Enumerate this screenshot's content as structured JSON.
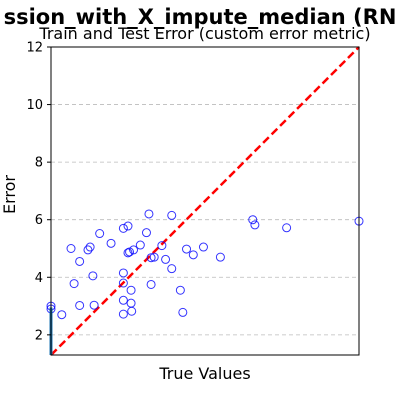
{
  "chart_data": {
    "type": "scatter",
    "title": "ssion_with_X_impute_median (RN",
    "subtitle": "Train and Test Error (custom error metric)",
    "xlabel": "True Values",
    "ylabel": "Error",
    "xlim": [
      0,
      1
    ],
    "ylim": [
      1.3,
      12
    ],
    "yticks": [
      2,
      4,
      6,
      8,
      10,
      12
    ],
    "yticks_labels": [
      "2",
      "4",
      "6",
      "8",
      "10",
      "12"
    ],
    "xticks_labels": [],
    "grid": "y-dashed",
    "marker_color": "#0000ff",
    "reference_line_color": "#ff0000",
    "accent_color": "#1f77b4",
    "reference_line": {
      "style": "dashed",
      "from": [
        0,
        1.3
      ],
      "to": [
        1,
        12
      ]
    },
    "series": [
      {
        "values": [
          [
            0.0,
            3.0
          ],
          [
            0.0,
            2.9
          ],
          [
            0.035,
            2.7
          ],
          [
            0.065,
            5.0
          ],
          [
            0.075,
            3.78
          ],
          [
            0.093,
            3.02
          ],
          [
            0.093,
            4.55
          ],
          [
            0.12,
            4.95
          ],
          [
            0.127,
            5.05
          ],
          [
            0.136,
            4.05
          ],
          [
            0.14,
            3.03
          ],
          [
            0.158,
            5.52
          ],
          [
            0.195,
            5.18
          ],
          [
            0.235,
            5.7
          ],
          [
            0.235,
            4.15
          ],
          [
            0.235,
            3.8
          ],
          [
            0.235,
            3.2
          ],
          [
            0.235,
            2.72
          ],
          [
            0.25,
            5.78
          ],
          [
            0.25,
            4.85
          ],
          [
            0.255,
            4.88
          ],
          [
            0.26,
            3.55
          ],
          [
            0.26,
            3.1
          ],
          [
            0.262,
            2.82
          ],
          [
            0.268,
            4.95
          ],
          [
            0.29,
            5.12
          ],
          [
            0.31,
            5.55
          ],
          [
            0.318,
            6.2
          ],
          [
            0.325,
            3.75
          ],
          [
            0.325,
            4.68
          ],
          [
            0.335,
            4.7
          ],
          [
            0.36,
            5.1
          ],
          [
            0.372,
            4.62
          ],
          [
            0.392,
            6.15
          ],
          [
            0.392,
            4.3
          ],
          [
            0.42,
            3.55
          ],
          [
            0.428,
            2.78
          ],
          [
            0.44,
            4.98
          ],
          [
            0.462,
            4.78
          ],
          [
            0.495,
            5.05
          ],
          [
            0.55,
            4.7
          ],
          [
            0.655,
            6.0
          ],
          [
            0.662,
            5.82
          ],
          [
            0.765,
            5.72
          ],
          [
            1.0,
            5.95
          ]
        ]
      }
    ]
  }
}
